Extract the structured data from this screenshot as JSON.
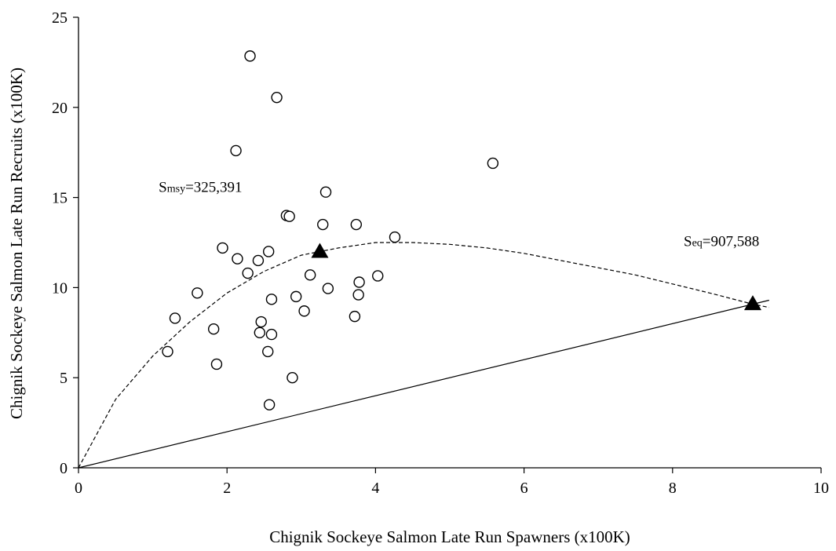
{
  "chart_data": {
    "type": "scatter",
    "xlabel": "Chignik Sockeye Salmon Late Run Spawners (x100K)",
    "ylabel": "Chignik Sockeye Salmon Late Run Recruits (x100K)",
    "xlim": [
      0,
      10
    ],
    "ylim": [
      0,
      25
    ],
    "x_ticks": [
      "0",
      "2",
      "4",
      "6",
      "8",
      "10"
    ],
    "y_ticks": [
      "0",
      "5",
      "10",
      "15",
      "20",
      "25"
    ],
    "grid": false,
    "legend": "none",
    "series": [
      {
        "style": "open-circle",
        "points": [
          [
            1.2,
            6.45
          ],
          [
            1.3,
            8.3
          ],
          [
            1.6,
            9.7
          ],
          [
            1.82,
            7.7
          ],
          [
            1.86,
            5.75
          ],
          [
            1.94,
            12.2
          ],
          [
            2.12,
            17.6
          ],
          [
            2.14,
            11.6
          ],
          [
            2.28,
            10.8
          ],
          [
            2.31,
            22.85
          ],
          [
            2.42,
            11.5
          ],
          [
            2.44,
            7.5
          ],
          [
            2.46,
            8.1
          ],
          [
            2.55,
            6.45
          ],
          [
            2.56,
            12.0
          ],
          [
            2.57,
            3.5
          ],
          [
            2.6,
            7.4
          ],
          [
            2.6,
            9.35
          ],
          [
            2.67,
            20.55
          ],
          [
            2.8,
            14.0
          ],
          [
            2.84,
            13.95
          ],
          [
            2.88,
            5.0
          ],
          [
            2.93,
            9.5
          ],
          [
            3.04,
            8.7
          ],
          [
            3.12,
            10.7
          ],
          [
            3.29,
            13.5
          ],
          [
            3.33,
            15.3
          ],
          [
            3.36,
            9.95
          ],
          [
            3.72,
            8.4
          ],
          [
            3.74,
            13.5
          ],
          [
            3.77,
            9.6
          ],
          [
            3.78,
            10.3
          ],
          [
            4.03,
            10.65
          ],
          [
            4.26,
            12.8
          ],
          [
            5.58,
            16.9
          ]
        ]
      },
      {
        "style": "dashed-curve",
        "points": [
          [
            0,
            0
          ],
          [
            0.5,
            3.8
          ],
          [
            1.0,
            6.2
          ],
          [
            1.5,
            8.1
          ],
          [
            2.0,
            9.7
          ],
          [
            2.5,
            10.9
          ],
          [
            3.0,
            11.8
          ],
          [
            3.25,
            12.0
          ],
          [
            3.5,
            12.2
          ],
          [
            4.0,
            12.5
          ],
          [
            4.5,
            12.5
          ],
          [
            5.0,
            12.4
          ],
          [
            5.5,
            12.2
          ],
          [
            6.0,
            11.9
          ],
          [
            6.5,
            11.5
          ],
          [
            7.0,
            11.1
          ],
          [
            7.5,
            10.7
          ],
          [
            8.0,
            10.2
          ],
          [
            8.5,
            9.7
          ],
          [
            9.08,
            9.08
          ],
          [
            9.3,
            8.9
          ]
        ]
      },
      {
        "style": "solid-line",
        "points": [
          [
            0,
            0
          ],
          [
            9.3,
            9.3
          ]
        ]
      },
      {
        "style": "filled-triangle",
        "points": [
          [
            3.25,
            12.0
          ],
          [
            9.08,
            9.1
          ]
        ]
      }
    ],
    "annotations": [
      {
        "main": "S",
        "sub": "msy",
        "value": "=325,391",
        "x": 1.08,
        "y": 15.3
      },
      {
        "main": "S",
        "sub": "eq",
        "value": "=907,588",
        "x": 8.15,
        "y": 12.3
      }
    ]
  }
}
